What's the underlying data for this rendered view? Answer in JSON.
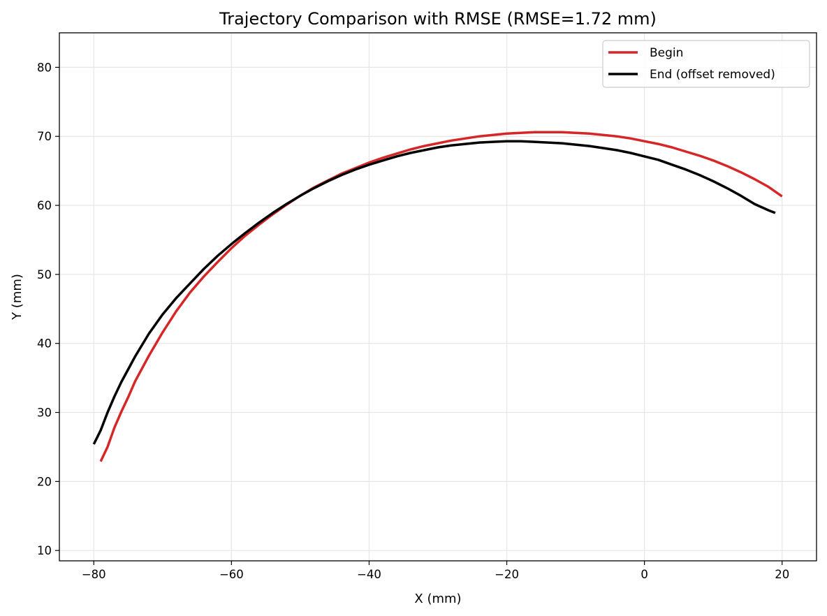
{
  "chart_data": {
    "type": "line",
    "title": "Trajectory Comparison with RMSE (RMSE=1.72 mm)",
    "xlabel": "X (mm)",
    "ylabel": "Y (mm)",
    "xlim": [
      -85,
      25
    ],
    "ylim": [
      8.5,
      85
    ],
    "xticks": [
      -80,
      -60,
      -40,
      -20,
      0,
      20
    ],
    "yticks": [
      10,
      20,
      30,
      40,
      50,
      60,
      70,
      80
    ],
    "xtick_labels": [
      "−80",
      "−60",
      "−40",
      "−20",
      "0",
      "20"
    ],
    "ytick_labels": [
      "10",
      "20",
      "30",
      "40",
      "50",
      "60",
      "70",
      "80"
    ],
    "grid": true,
    "legend_position": "top-right",
    "series": [
      {
        "name": "Begin",
        "color": "#d62728",
        "points": [
          [
            -79.0,
            22.9
          ],
          [
            -78.0,
            25.0
          ],
          [
            -77.0,
            27.8
          ],
          [
            -76.0,
            30.1
          ],
          [
            -75.0,
            32.2
          ],
          [
            -74.0,
            34.5
          ],
          [
            -72.0,
            38.2
          ],
          [
            -70.0,
            41.6
          ],
          [
            -68.0,
            44.7
          ],
          [
            -66.0,
            47.4
          ],
          [
            -64.0,
            49.7
          ],
          [
            -62.0,
            51.8
          ],
          [
            -60.0,
            53.8
          ],
          [
            -58.0,
            55.6
          ],
          [
            -56.0,
            57.2
          ],
          [
            -54.0,
            58.7
          ],
          [
            -52.0,
            60.1
          ],
          [
            -50.0,
            61.4
          ],
          [
            -48.0,
            62.6
          ],
          [
            -46.0,
            63.6
          ],
          [
            -44.0,
            64.6
          ],
          [
            -42.0,
            65.4
          ],
          [
            -40.0,
            66.2
          ],
          [
            -38.0,
            66.9
          ],
          [
            -36.0,
            67.5
          ],
          [
            -34.0,
            68.1
          ],
          [
            -32.0,
            68.6
          ],
          [
            -30.0,
            69.0
          ],
          [
            -28.0,
            69.4
          ],
          [
            -26.0,
            69.7
          ],
          [
            -24.0,
            70.0
          ],
          [
            -22.0,
            70.2
          ],
          [
            -20.0,
            70.4
          ],
          [
            -18.0,
            70.5
          ],
          [
            -16.0,
            70.6
          ],
          [
            -14.0,
            70.6
          ],
          [
            -12.0,
            70.6
          ],
          [
            -10.0,
            70.5
          ],
          [
            -8.0,
            70.4
          ],
          [
            -6.0,
            70.2
          ],
          [
            -4.0,
            70.0
          ],
          [
            -2.0,
            69.7
          ],
          [
            0.0,
            69.3
          ],
          [
            2.0,
            68.9
          ],
          [
            4.0,
            68.4
          ],
          [
            6.0,
            67.8
          ],
          [
            8.0,
            67.2
          ],
          [
            10.0,
            66.5
          ],
          [
            12.0,
            65.7
          ],
          [
            14.0,
            64.8
          ],
          [
            16.0,
            63.8
          ],
          [
            18.0,
            62.7
          ],
          [
            20.0,
            61.3
          ]
        ]
      },
      {
        "name": "End (offset removed)",
        "color": "#000000",
        "points": [
          [
            -80.0,
            25.4
          ],
          [
            -79.0,
            27.4
          ],
          [
            -78.0,
            30.0
          ],
          [
            -77.0,
            32.3
          ],
          [
            -76.0,
            34.4
          ],
          [
            -74.0,
            38.1
          ],
          [
            -72.0,
            41.4
          ],
          [
            -70.0,
            44.2
          ],
          [
            -68.0,
            46.6
          ],
          [
            -66.0,
            48.7
          ],
          [
            -64.0,
            50.8
          ],
          [
            -62.0,
            52.7
          ],
          [
            -60.0,
            54.4
          ],
          [
            -58.0,
            56.0
          ],
          [
            -56.0,
            57.5
          ],
          [
            -54.0,
            58.9
          ],
          [
            -52.0,
            60.2
          ],
          [
            -50.0,
            61.4
          ],
          [
            -48.0,
            62.5
          ],
          [
            -46.0,
            63.5
          ],
          [
            -44.0,
            64.4
          ],
          [
            -42.0,
            65.2
          ],
          [
            -40.0,
            65.9
          ],
          [
            -38.0,
            66.5
          ],
          [
            -36.0,
            67.1
          ],
          [
            -34.0,
            67.6
          ],
          [
            -32.0,
            68.0
          ],
          [
            -30.0,
            68.4
          ],
          [
            -28.0,
            68.7
          ],
          [
            -26.0,
            68.9
          ],
          [
            -24.0,
            69.1
          ],
          [
            -22.0,
            69.2
          ],
          [
            -20.0,
            69.3
          ],
          [
            -18.0,
            69.3
          ],
          [
            -16.0,
            69.2
          ],
          [
            -14.0,
            69.1
          ],
          [
            -12.0,
            69.0
          ],
          [
            -10.0,
            68.8
          ],
          [
            -8.0,
            68.6
          ],
          [
            -6.0,
            68.3
          ],
          [
            -4.0,
            68.0
          ],
          [
            -2.0,
            67.6
          ],
          [
            0.0,
            67.1
          ],
          [
            2.0,
            66.6
          ],
          [
            4.0,
            65.9
          ],
          [
            6.0,
            65.2
          ],
          [
            8.0,
            64.4
          ],
          [
            10.0,
            63.5
          ],
          [
            12.0,
            62.5
          ],
          [
            14.0,
            61.4
          ],
          [
            16.0,
            60.2
          ],
          [
            18.0,
            59.3
          ],
          [
            19.0,
            58.9
          ]
        ]
      }
    ]
  }
}
